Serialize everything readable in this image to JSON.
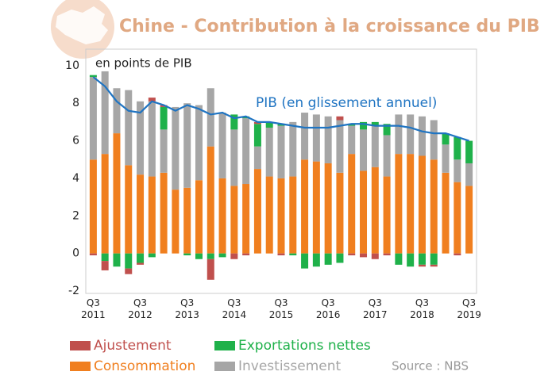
{
  "chart_data": {
    "type": "bar",
    "title": "Chine - Contribution à la croissance du PIB",
    "ylabel": "en points de PIB",
    "source": "Source : NBS",
    "stacked": true,
    "categories": [
      "Q3\n2011",
      null,
      null,
      null,
      "Q3\n2012",
      null,
      null,
      null,
      "Q3\n2013",
      null,
      null,
      null,
      "Q3\n2014",
      null,
      null,
      null,
      "Q3\n2015",
      null,
      null,
      null,
      "Q3\n2016",
      null,
      null,
      null,
      "Q3\n2017",
      null,
      null,
      null,
      "Q3\n2018",
      null,
      null,
      null,
      "Q3\n2019"
    ],
    "series": [
      {
        "name": "Consommation",
        "color": "#f07f1f",
        "values": [
          5.0,
          5.3,
          6.4,
          4.7,
          4.2,
          4.1,
          4.3,
          3.4,
          3.5,
          3.9,
          5.7,
          4.0,
          3.6,
          3.7,
          4.5,
          4.1,
          4.0,
          4.1,
          5.0,
          4.9,
          4.8,
          4.3,
          5.3,
          4.4,
          4.6,
          4.1,
          5.3,
          5.3,
          5.2,
          5.0,
          4.3,
          3.8,
          3.6
        ]
      },
      {
        "name": "Investissement",
        "color": "#a6a6a6",
        "values": [
          4.4,
          4.4,
          2.4,
          4.0,
          3.9,
          4.0,
          2.3,
          4.4,
          4.5,
          4.0,
          3.1,
          3.5,
          3.0,
          3.5,
          1.2,
          2.6,
          2.8,
          2.9,
          2.5,
          2.5,
          2.5,
          2.8,
          1.5,
          2.2,
          2.2,
          2.2,
          2.1,
          2.1,
          2.1,
          2.1,
          1.5,
          1.2,
          1.2
        ]
      },
      {
        "name": "Exportations nettes",
        "color": "#1fb14a",
        "values": [
          0.1,
          -0.4,
          -0.7,
          -0.8,
          -0.5,
          -0.2,
          1.2,
          0.0,
          -0.1,
          -0.3,
          -0.3,
          -0.2,
          0.8,
          0.1,
          1.2,
          0.3,
          0.1,
          -0.1,
          -0.8,
          -0.7,
          -0.6,
          -0.5,
          0.1,
          0.4,
          0.2,
          0.6,
          -0.6,
          -0.7,
          -0.6,
          -0.6,
          0.6,
          1.2,
          1.2
        ]
      },
      {
        "name": "Ajustement",
        "color": "#c0504d",
        "values": [
          -0.1,
          -0.5,
          0.0,
          -0.3,
          -0.1,
          0.2,
          0.1,
          0.0,
          0.0,
          0.0,
          -1.1,
          0.0,
          -0.3,
          -0.1,
          0.1,
          0.0,
          -0.1,
          0.0,
          0.0,
          0.0,
          0.0,
          0.2,
          -0.1,
          -0.2,
          -0.3,
          -0.1,
          0.0,
          0.0,
          -0.1,
          -0.1,
          0.0,
          -0.1,
          0.0
        ]
      },
      {
        "name": "PIB (en glissement annuel)",
        "type": "line",
        "color": "#1f74c2",
        "values": [
          9.4,
          8.9,
          8.1,
          7.6,
          7.5,
          8.1,
          7.9,
          7.6,
          7.9,
          7.7,
          7.4,
          7.5,
          7.2,
          7.3,
          7.0,
          7.0,
          6.9,
          6.8,
          6.7,
          6.7,
          6.7,
          6.8,
          6.9,
          6.9,
          6.8,
          6.8,
          6.8,
          6.7,
          6.5,
          6.4,
          6.4,
          6.2,
          6.0
        ]
      }
    ],
    "ylim": [
      -2,
      10.5
    ],
    "yticks": [
      -2,
      0,
      2,
      4,
      6,
      8,
      10
    ],
    "grid": false
  }
}
